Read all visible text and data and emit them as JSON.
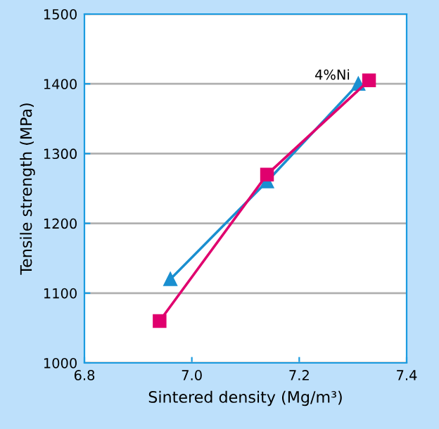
{
  "chart_data": {
    "type": "line",
    "xlabel": "Sintered density (Mg/m³)",
    "ylabel": "Tensile strength (MPa)",
    "xlim": [
      6.8,
      7.4
    ],
    "xticks": [
      6.8,
      {
        "value": 7,
        "label": "7.0"
      },
      7.2,
      7.4
    ],
    "ylim": [
      1000,
      1500
    ],
    "yticks": [
      1000,
      1100,
      1200,
      1300,
      1400,
      1500
    ],
    "grid": "y",
    "legend": false,
    "series": [
      {
        "name": "4%Ni",
        "color": "#1a8fd0",
        "marker": "triangle",
        "x": [
          6.96,
          7.14,
          7.31
        ],
        "values": [
          1120,
          1260,
          1400
        ]
      },
      {
        "color": "#e0006e",
        "marker": "square",
        "x": [
          6.94,
          7.14,
          7.33
        ],
        "values": [
          1060,
          1270,
          1405
        ]
      }
    ]
  }
}
